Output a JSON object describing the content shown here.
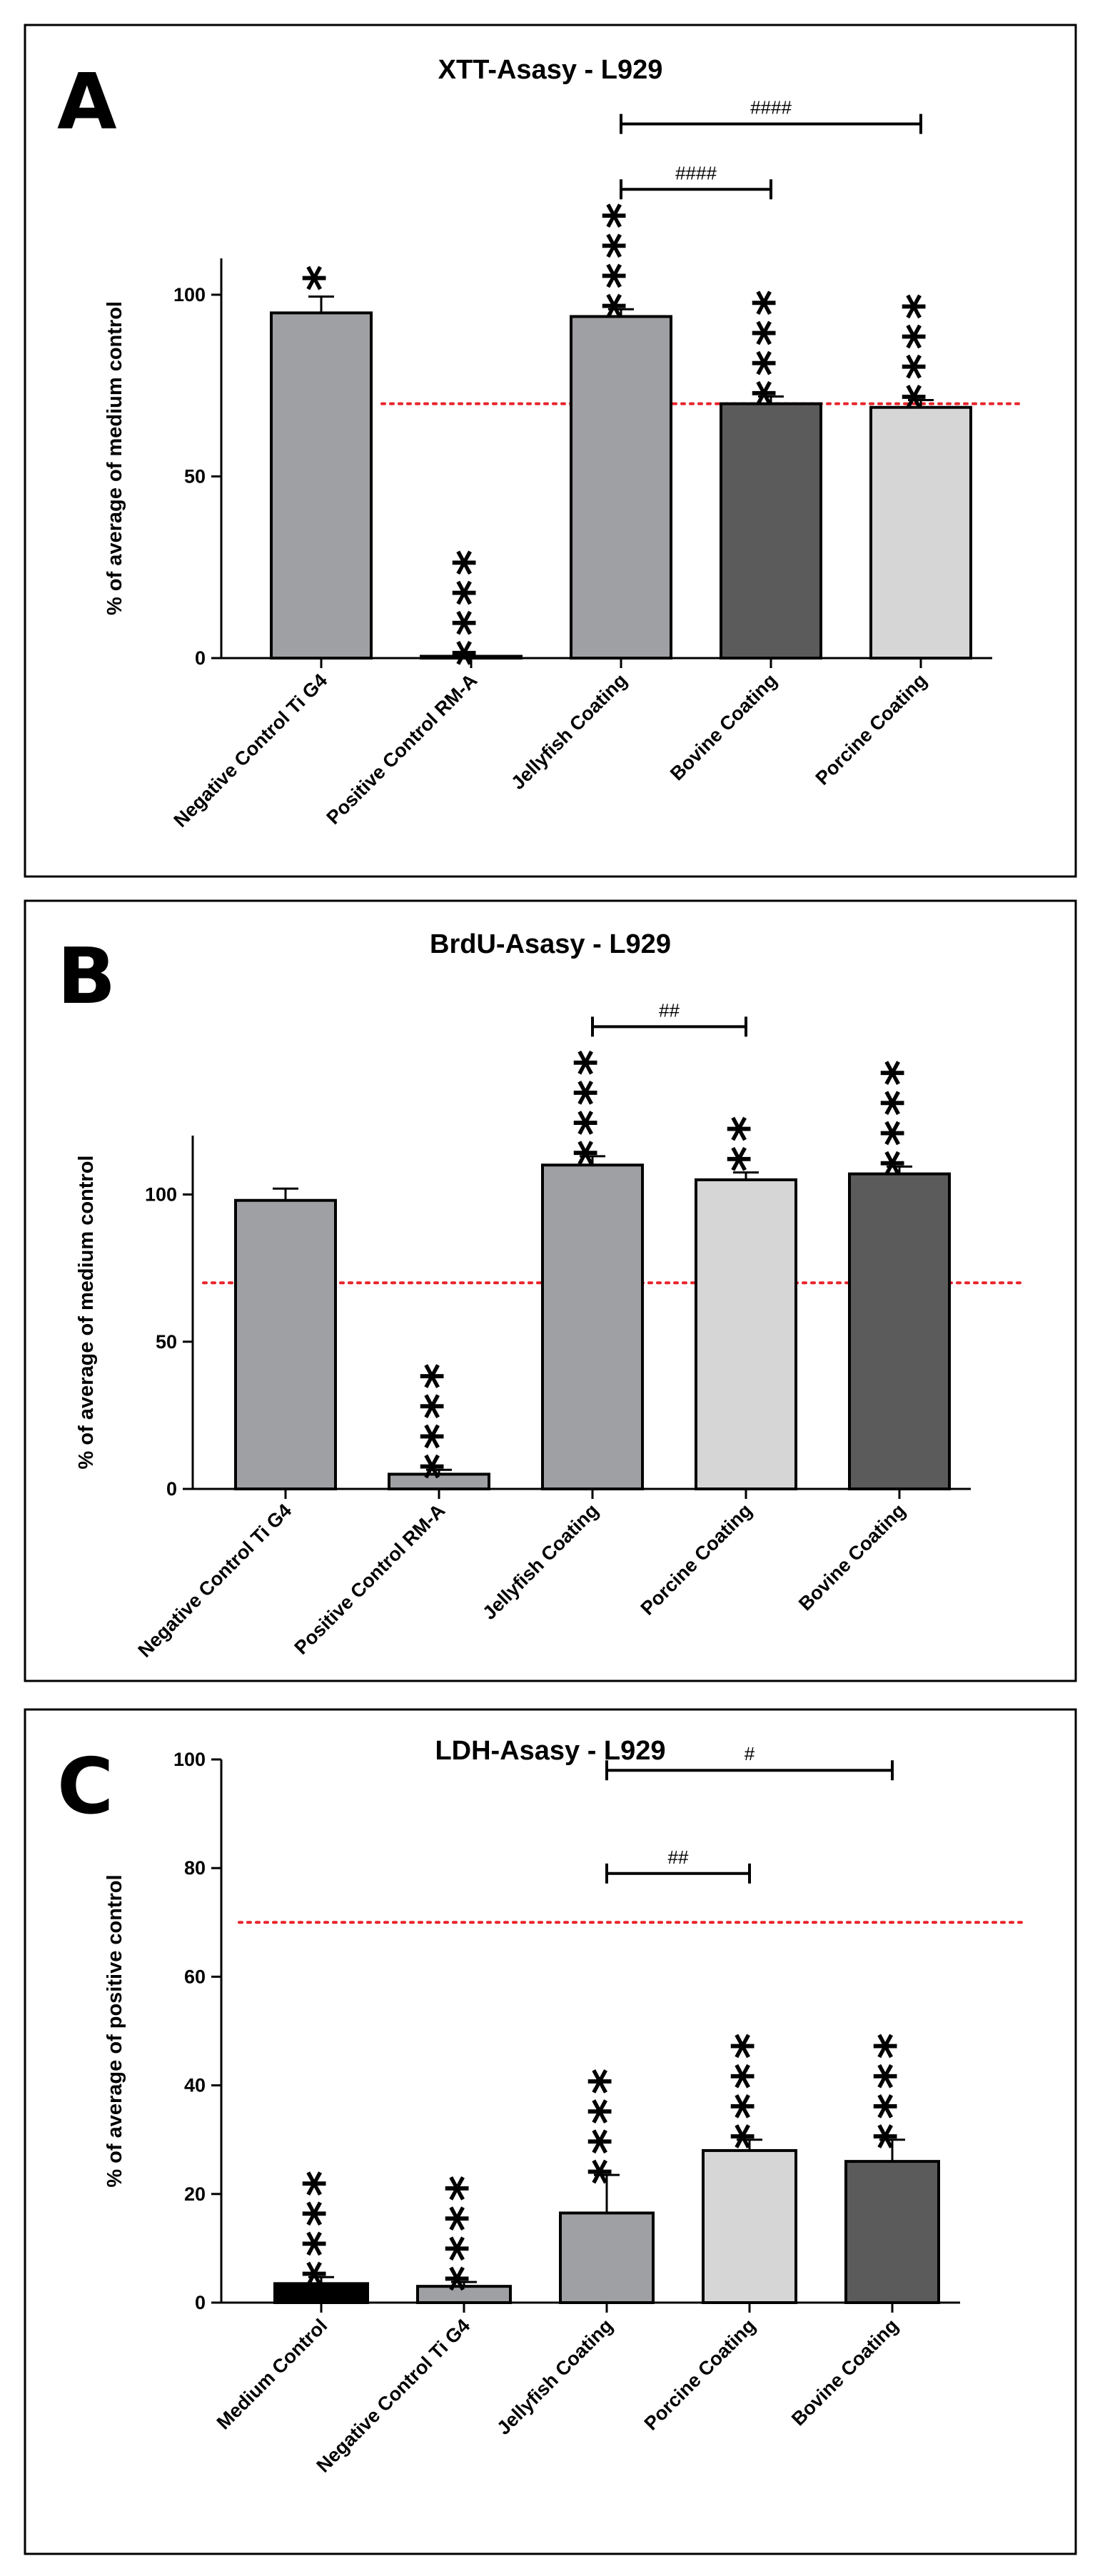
{
  "chart_data": [
    {
      "panel": "A",
      "type": "bar",
      "title": "XTT-Asasy - L929",
      "ylabel": "% of average of medium control",
      "xlabel": "",
      "ylim": [
        0,
        110
      ],
      "yticks": [
        0,
        50,
        100
      ],
      "threshold": 70,
      "categories": [
        "Negative Control Ti G4",
        "Positive Control RM-A",
        "Jellyfish Coating",
        "Bovine Coating",
        "Porcine Coating"
      ],
      "values": [
        95,
        0.5,
        94,
        70,
        69
      ],
      "errors": [
        4.5,
        0,
        2,
        2,
        2
      ],
      "colors": [
        "#9fa0a3",
        "#9fa0a3",
        "#9fa0a3",
        "#5b5b5c",
        "#d6d6d6"
      ],
      "significance": [
        "*",
        "****",
        "****",
        "****",
        "****"
      ],
      "comparisons": [
        {
          "from": 2,
          "to": 3,
          "label": "####",
          "y": 129
        },
        {
          "from": 2,
          "to": 4,
          "label": "####",
          "y": 147
        }
      ]
    },
    {
      "panel": "B",
      "type": "bar",
      "title": "BrdU-Asasy - L929",
      "ylabel": "% of average of medium control",
      "xlabel": "",
      "ylim": [
        0,
        120
      ],
      "yticks": [
        0,
        50,
        100
      ],
      "threshold": 70,
      "categories": [
        "Negative Control Ti G4",
        "Positive Control RM-A",
        "Jellyfish Coating",
        "Porcine Coating",
        "Bovine Coating"
      ],
      "values": [
        98,
        5,
        110,
        105,
        107
      ],
      "errors": [
        4,
        1.5,
        3,
        2.5,
        2.5
      ],
      "colors": [
        "#9fa0a3",
        "#9fa0a3",
        "#9fa0a3",
        "#d6d6d6",
        "#5b5b5c"
      ],
      "significance": [
        "",
        "****",
        "****",
        "**",
        "****"
      ],
      "comparisons": [
        {
          "from": 2,
          "to": 3,
          "label": "##",
          "y": 157
        }
      ]
    },
    {
      "panel": "C",
      "type": "bar",
      "title": "LDH-Asasy - L929",
      "ylabel": "% of average of positive control",
      "xlabel": "",
      "ylim": [
        0,
        100
      ],
      "yticks": [
        0,
        20,
        40,
        60,
        80,
        100
      ],
      "threshold": 70,
      "categories": [
        "Medium Control",
        "Negative Control Ti G4",
        "Jellyfish Coating",
        "Porcine Coating",
        "Bovine Coating"
      ],
      "values": [
        3.5,
        3,
        16.5,
        28,
        26
      ],
      "errors": [
        1.2,
        0.8,
        7,
        2,
        4
      ],
      "colors": [
        "#000000",
        "#9fa0a3",
        "#9fa0a3",
        "#d6d6d6",
        "#5b5b5c"
      ],
      "significance": [
        "****",
        "****",
        "****",
        "****",
        "****"
      ],
      "comparisons": [
        {
          "from": 2,
          "to": 3,
          "label": "##",
          "y": 79
        },
        {
          "from": 2,
          "to": 4,
          "label": "#",
          "y": 98
        }
      ]
    }
  ],
  "colors": {
    "threshold": "#e8232a",
    "frame": "#000000"
  }
}
